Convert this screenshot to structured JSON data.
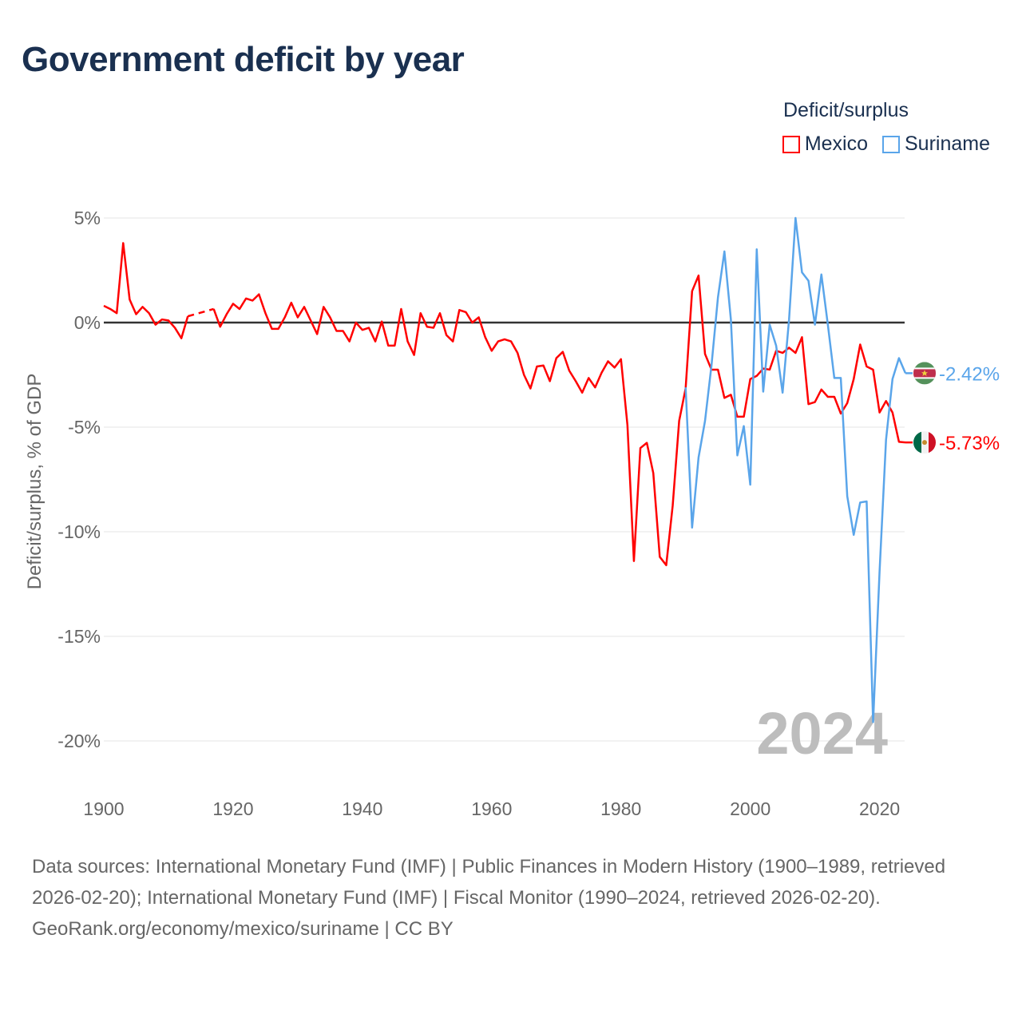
{
  "title": "Government deficit by year",
  "legend": {
    "title": "Deficit/surplus",
    "items": [
      {
        "name": "Mexico",
        "color": "#ff0000"
      },
      {
        "name": "Suriname",
        "color": "#5aa5ea"
      }
    ]
  },
  "footer": {
    "sources": "Data sources: International Monetary Fund (IMF) | Public Finances in Modern History (1900–1989, retrieved 2026-02-20); International Monetary Fund (IMF) | Fiscal Monitor (1990–2024, retrieved 2026-02-20).",
    "credit": "GeoRank.org/economy/mexico/suriname | CC BY"
  },
  "chart_data": {
    "type": "line",
    "title": "Government deficit by year",
    "ylabel": "Deficit/surplus, % of GDP",
    "xlabel": "",
    "xlim": [
      1900,
      2024
    ],
    "ylim": [
      -20,
      5
    ],
    "x_ticks": [
      "1900",
      "1920",
      "1940",
      "1960",
      "1980",
      "2000",
      "2020"
    ],
    "y_ticks": [
      {
        "value": 5,
        "label": "5%"
      },
      {
        "value": 0,
        "label": "0%"
      },
      {
        "value": -5,
        "label": "-5%"
      },
      {
        "value": -10,
        "label": "-10%"
      },
      {
        "value": -15,
        "label": "-15%"
      },
      {
        "value": -20,
        "label": "-20%"
      }
    ],
    "year_watermark": "2024",
    "series": [
      {
        "name": "Mexico",
        "color": "#ff0000",
        "end_label": "-5.73%",
        "start_year": 1900,
        "values": [
          0.8,
          0.65,
          0.45,
          3.8,
          1.1,
          0.4,
          0.75,
          0.45,
          -0.1,
          0.15,
          0.1,
          -0.25,
          -0.75,
          0.3,
          null,
          null,
          null,
          0.65,
          -0.2,
          0.4,
          0.9,
          0.65,
          1.15,
          1.05,
          1.35,
          0.45,
          -0.3,
          -0.3,
          0.25,
          0.95,
          0.25,
          0.75,
          0.1,
          -0.55,
          0.75,
          0.25,
          -0.4,
          -0.4,
          -0.9,
          0,
          -0.35,
          -0.25,
          -0.9,
          0.05,
          -1.1,
          -1.1,
          0.65,
          -0.9,
          -1.55,
          0.45,
          -0.2,
          -0.25,
          0.45,
          -0.6,
          -0.9,
          0.6,
          0.5,
          0,
          0.25,
          -0.7,
          -1.35,
          -0.9,
          -0.8,
          -0.9,
          -1.45,
          -2.5,
          -3.15,
          -2.1,
          -2.05,
          -2.8,
          -1.7,
          -1.4,
          -2.3,
          -2.8,
          -3.35,
          -2.65,
          -3.1,
          -2.4,
          -1.85,
          -2.15,
          -1.75,
          -4.9,
          -11.4,
          -6.0,
          -5.75,
          -7.2,
          -11.2,
          -11.6,
          -8.75,
          -4.7,
          -3.15,
          1.5,
          2.25,
          -1.5,
          -2.25,
          -2.25,
          -3.6,
          -3.45,
          -4.5,
          -4.5,
          -2.7,
          -2.55,
          -2.2,
          -2.25,
          -1.35,
          -1.45,
          -1.2,
          -1.45,
          -0.7,
          -3.9,
          -3.8,
          -3.2,
          -3.55,
          -3.55,
          -4.35,
          -3.85,
          -2.7,
          -1.05,
          -2.1,
          -2.25,
          -4.3,
          -3.75,
          -4.3,
          -5.7,
          -5.73
        ]
      },
      {
        "name": "Suriname",
        "color": "#5aa5ea",
        "end_label": "-2.42%",
        "start_year": 1990,
        "values": [
          -3.1,
          -9.8,
          -6.45,
          -4.7,
          -2.05,
          1.2,
          3.4,
          0.15,
          -6.35,
          -4.95,
          -7.75,
          3.5,
          -3.3,
          -0.1,
          -1.1,
          -3.35,
          0.15,
          5.0,
          2.4,
          2.0,
          -0.1,
          2.3,
          -0.1,
          -2.65,
          -2.65,
          -8.3,
          -10.15,
          -8.6,
          -8.55,
          -19.1,
          -11.9,
          -5.6,
          -2.7,
          -1.7,
          -2.42
        ]
      }
    ]
  }
}
